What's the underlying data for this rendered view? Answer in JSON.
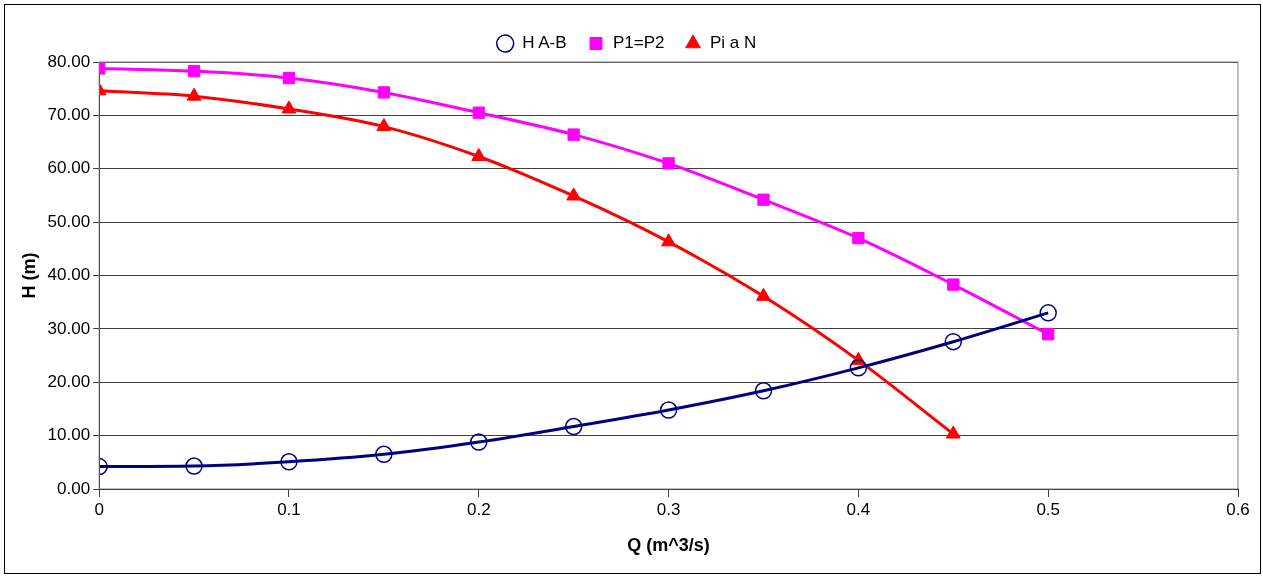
{
  "chart_data": {
    "type": "line",
    "xlabel": "Q (m^3/s)",
    "ylabel": "H (m)",
    "x": [
      0,
      0.05,
      0.1,
      0.15,
      0.2,
      0.25,
      0.3,
      0.35,
      0.4,
      0.45,
      0.5
    ],
    "series": [
      {
        "name": "H A-B",
        "color": "#000080",
        "marker": "circle",
        "values": [
          4.2,
          4.3,
          5.1,
          6.5,
          8.8,
          11.7,
          14.8,
          18.4,
          22.7,
          27.6,
          33.0
        ]
      },
      {
        "name": "P1=P2",
        "color": "#ff00ff",
        "marker": "square",
        "values": [
          78.8,
          78.3,
          77.0,
          74.3,
          70.5,
          66.4,
          61.0,
          54.2,
          47.0,
          38.3,
          29.0
        ]
      },
      {
        "name": "Pi a N",
        "color": "#ff0000",
        "marker": "triangle",
        "values": [
          74.6,
          73.6,
          71.2,
          67.9,
          62.3,
          54.9,
          46.3,
          36.1,
          24.1,
          10.3,
          null
        ]
      }
    ],
    "xlim": [
      0,
      0.6
    ],
    "xticks": [
      0,
      0.1,
      0.2,
      0.3,
      0.4,
      0.5,
      0.6
    ],
    "ylim": [
      0,
      80
    ],
    "yticks": [
      {
        "value": 0,
        "label": "0.00"
      },
      {
        "value": 10,
        "label": "10.00"
      },
      {
        "value": 20,
        "label": "20.00"
      },
      {
        "value": 30,
        "label": "30.00"
      },
      {
        "value": 40,
        "label": "40.00"
      },
      {
        "value": 50,
        "label": "50.00"
      },
      {
        "value": 60,
        "label": "60.00"
      },
      {
        "value": 70,
        "label": "70.00"
      },
      {
        "value": 80,
        "label": "80.00"
      }
    ],
    "grid": "y",
    "legend": "top",
    "line_style": "solid"
  }
}
